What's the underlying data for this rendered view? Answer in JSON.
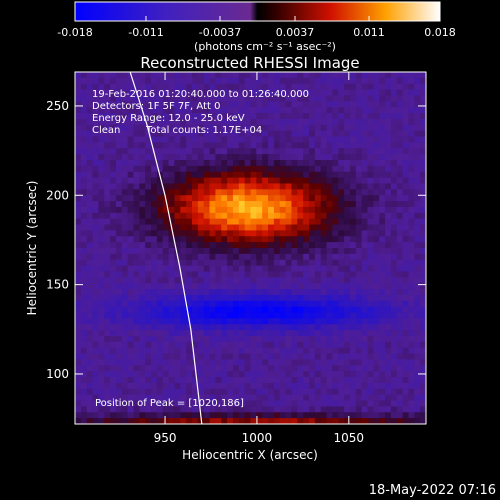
{
  "chart_data": {
    "type": "heatmap",
    "title": "Reconstructed RHESSI Image",
    "xlabel": "Heliocentric X (arcsec)",
    "ylabel": "Heliocentric Y (arcsec)",
    "xlim": [
      901,
      1092
    ],
    "ylim": [
      72,
      269
    ],
    "xticks": [
      950,
      1000,
      1050
    ],
    "yticks": [
      100,
      150,
      200,
      250
    ],
    "colorbar": {
      "ticks": [
        "-0.018",
        "-0.011",
        "-0.0037",
        "0.0037",
        "0.011",
        "0.018"
      ],
      "tick_values": [
        -0.018,
        -0.011,
        -0.0037,
        0.0037,
        0.011,
        0.018
      ],
      "range": [
        -0.018,
        0.018
      ],
      "unit_label": "(photons cm⁻² s⁻¹ asec⁻²)",
      "colormap": "blue-purple-red-yellow-white"
    },
    "annotations": {
      "time_range": "19-Feb-2016 01:20:40.000 to 01:26:40.000",
      "detectors": "Detectors: 1F 5F 7F, Att 0",
      "energy": "Energy Range: 12.0 - 25.0 keV",
      "clean_label": "Clean",
      "total_counts": "Total counts: 1.17E+04",
      "peak": "Position of Peak = [1020,186]"
    },
    "peak_position": [
      1020,
      186
    ],
    "limb_curve": [
      [
        931,
        269
      ],
      [
        940,
        240
      ],
      [
        950,
        200
      ],
      [
        958,
        160
      ],
      [
        964,
        125
      ],
      [
        968,
        90
      ],
      [
        970,
        72
      ]
    ],
    "features": [
      {
        "name": "main source",
        "center": [
          995,
          193
        ],
        "half_width": [
          50,
          22
        ],
        "peak": 0.018
      },
      {
        "name": "negative band",
        "center": [
          1000,
          135
        ],
        "half_width": [
          70,
          10
        ],
        "peak": -0.013
      },
      {
        "name": "positive edge",
        "center": [
          1000,
          72
        ],
        "half_width": [
          120,
          6
        ],
        "peak": 0.01
      }
    ]
  },
  "footer": {
    "timestamp": "18-May-2022 07:16"
  }
}
